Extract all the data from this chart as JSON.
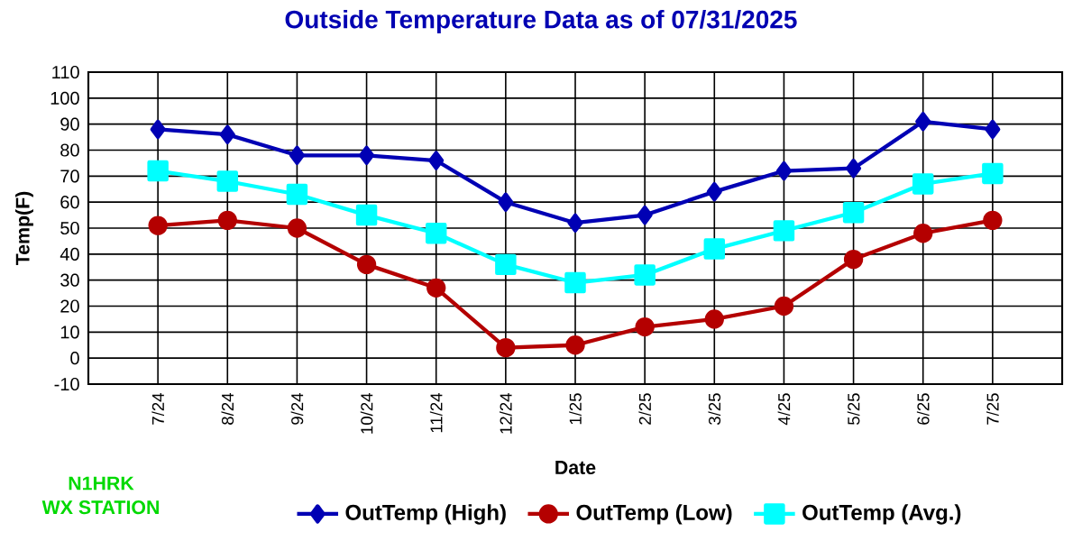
{
  "chart_data": {
    "type": "line",
    "title": "Outside Temperature Data as of 07/31/2025",
    "xlabel": "Date",
    "ylabel": "Temp(F)",
    "categories": [
      "7/24",
      "8/24",
      "9/24",
      "10/24",
      "11/24",
      "12/24",
      "1/25",
      "2/25",
      "3/25",
      "4/25",
      "5/25",
      "6/25",
      "7/25"
    ],
    "series": [
      {
        "name": "OutTemp (High)",
        "color": "#0000b4",
        "marker": "diamond",
        "values": [
          88,
          86,
          78,
          78,
          76,
          60,
          52,
          55,
          64,
          72,
          73,
          91,
          88
        ]
      },
      {
        "name": "OutTemp (Low)",
        "color": "#b40000",
        "marker": "circle",
        "values": [
          51,
          53,
          50,
          36,
          27,
          4,
          5,
          12,
          15,
          20,
          38,
          48,
          53
        ]
      },
      {
        "name": "OutTemp (Avg.)",
        "color": "#00ffff",
        "marker": "square",
        "values": [
          72,
          68,
          63,
          55,
          48,
          36,
          29,
          32,
          42,
          49,
          56,
          67,
          71
        ]
      }
    ],
    "ylim": [
      -10,
      110
    ],
    "yticks": [
      -10,
      0,
      10,
      20,
      30,
      40,
      50,
      60,
      70,
      80,
      90,
      100,
      110
    ],
    "grid": true,
    "legend": "bottom",
    "line_style": "solid",
    "annotations": [
      "N1HRK",
      "WX STATION"
    ]
  }
}
